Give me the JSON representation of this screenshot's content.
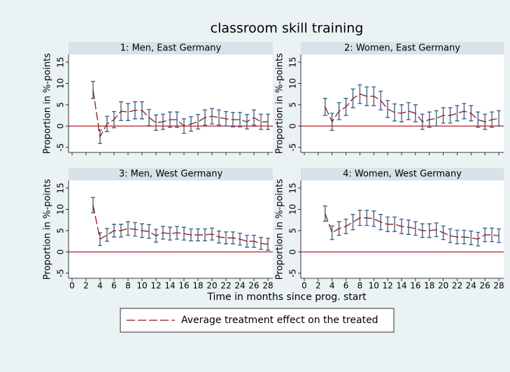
{
  "title": "classroom skill training",
  "x_label": "Time in months since prog. start",
  "legend": "Average treatment effect on the treated",
  "xlim": [
    -0.5,
    28.7
  ],
  "xticks": [
    0,
    2,
    4,
    6,
    8,
    10,
    12,
    14,
    16,
    18,
    20,
    22,
    24,
    26,
    28
  ],
  "chart_data": [
    {
      "type": "line",
      "title": "1: Men, East Germany",
      "y_label": "Proportion in %-points",
      "ylim": [
        -6.2,
        16.8
      ],
      "yticks": [
        -5,
        0,
        5,
        10,
        15
      ],
      "refline": 0,
      "refline_color": "#c0182a",
      "error_color": "#3b5b7d",
      "x": [
        3,
        4,
        5,
        6,
        7,
        8,
        9,
        10,
        11,
        12,
        13,
        14,
        15,
        16,
        17,
        18,
        19,
        20,
        21,
        22,
        23,
        24,
        25,
        26,
        27,
        28
      ],
      "series": [
        {
          "color": "#8b1a1a",
          "values": [
            8.5,
            -2.5,
            0.5,
            1.5,
            3.5,
            3.3,
            3.7,
            3.7,
            2.0,
            0.8,
            1.0,
            1.5,
            1.5,
            0,
            0.5,
            1.0,
            2.0,
            2.3,
            2.0,
            1.7,
            1.5,
            1.5,
            1.0,
            2.0,
            1.0,
            1.0
          ],
          "errors": [
            2,
            1.6,
            1.8,
            1.9,
            2.2,
            2.0,
            2.0,
            2.0,
            1.9,
            1.8,
            1.8,
            1.8,
            1.8,
            1.7,
            1.7,
            1.7,
            1.8,
            1.8,
            1.8,
            1.7,
            1.7,
            1.7,
            1.7,
            1.8,
            1.8,
            1.8
          ]
        }
      ]
    },
    {
      "type": "line",
      "title": "2: Women, East Germany",
      "y_label": "Proportion in %-points",
      "ylim": [
        -6.2,
        16.8
      ],
      "yticks": [
        -5,
        0,
        5,
        10,
        15
      ],
      "refline": 0,
      "refline_color": "#c0182a",
      "error_color": "#3b5b7d",
      "x": [
        3,
        4,
        5,
        6,
        7,
        8,
        9,
        10,
        11,
        12,
        13,
        14,
        15,
        16,
        17,
        18,
        19,
        20,
        21,
        22,
        23,
        24,
        25,
        26,
        27,
        28
      ],
      "series": [
        {
          "color": "#8b1a1a",
          "values": [
            4.5,
            1.0,
            3.5,
            4.5,
            6.5,
            7.5,
            7.0,
            7.0,
            6.0,
            4.0,
            3.2,
            3.0,
            3.5,
            3.0,
            1.0,
            1.5,
            1.8,
            2.5,
            2.5,
            3.0,
            3.5,
            3.0,
            1.5,
            1.0,
            1.5,
            1.8
          ],
          "errors": [
            2,
            2,
            2,
            2,
            2.2,
            2.2,
            2.2,
            2.2,
            2.2,
            2,
            2,
            2,
            2,
            2,
            1.8,
            1.8,
            1.8,
            1.8,
            1.8,
            1.8,
            1.8,
            1.8,
            1.8,
            1.8,
            1.8,
            1.8
          ]
        }
      ]
    },
    {
      "type": "line",
      "title": "3: Men, West Germany",
      "y_label": "Proportion in %-points",
      "ylim": [
        -6.2,
        16.8
      ],
      "yticks": [
        -5,
        0,
        5,
        10,
        15
      ],
      "refline": 0,
      "refline_color": "#c0182a",
      "error_color": "#3b5b7d",
      "x": [
        3,
        4,
        5,
        6,
        7,
        8,
        9,
        10,
        11,
        12,
        13,
        14,
        15,
        16,
        17,
        18,
        19,
        20,
        21,
        22,
        23,
        24,
        25,
        26,
        27,
        28
      ],
      "series": [
        {
          "color": "#8b1a1a",
          "values": [
            11,
            3,
            4,
            5,
            5,
            5.5,
            5.3,
            5,
            4.8,
            3.8,
            4.5,
            4.3,
            4.5,
            4.3,
            4,
            4,
            4,
            4.2,
            3.5,
            3.3,
            3.3,
            3,
            2.5,
            2.5,
            2,
            1.8
          ],
          "errors": [
            1.8,
            1.5,
            1.5,
            1.5,
            1.5,
            1.6,
            1.6,
            1.6,
            1.6,
            1.5,
            1.5,
            1.5,
            1.5,
            1.5,
            1.4,
            1.4,
            1.4,
            1.4,
            1.4,
            1.4,
            1.4,
            1.4,
            1.4,
            1.4,
            1.4,
            1.4
          ]
        }
      ]
    },
    {
      "type": "line",
      "title": "4: Women, West Germany",
      "y_label": "Proportion in %-points",
      "ylim": [
        -6.2,
        16.8
      ],
      "yticks": [
        -5,
        0,
        5,
        10,
        15
      ],
      "refline": 0,
      "refline_color": "#c0182a",
      "error_color": "#3b5b7d",
      "x": [
        3,
        4,
        5,
        6,
        7,
        8,
        9,
        10,
        11,
        12,
        13,
        14,
        15,
        16,
        17,
        18,
        19,
        20,
        21,
        22,
        23,
        24,
        25,
        26,
        27,
        28
      ],
      "series": [
        {
          "color": "#8b1a1a",
          "values": [
            9,
            4.5,
            5.5,
            6,
            7,
            8,
            8,
            7.8,
            7,
            6.5,
            6.5,
            6,
            5.8,
            5.5,
            5,
            5,
            5.2,
            4.5,
            3.8,
            3.5,
            3.5,
            3.3,
            3,
            4,
            4,
            3.8
          ],
          "errors": [
            1.8,
            1.6,
            1.6,
            1.7,
            1.8,
            1.8,
            1.8,
            1.8,
            1.8,
            1.7,
            1.7,
            1.7,
            1.7,
            1.6,
            1.6,
            1.6,
            1.6,
            1.6,
            1.6,
            1.6,
            1.6,
            1.6,
            1.6,
            1.6,
            1.6,
            1.6
          ]
        }
      ]
    }
  ]
}
